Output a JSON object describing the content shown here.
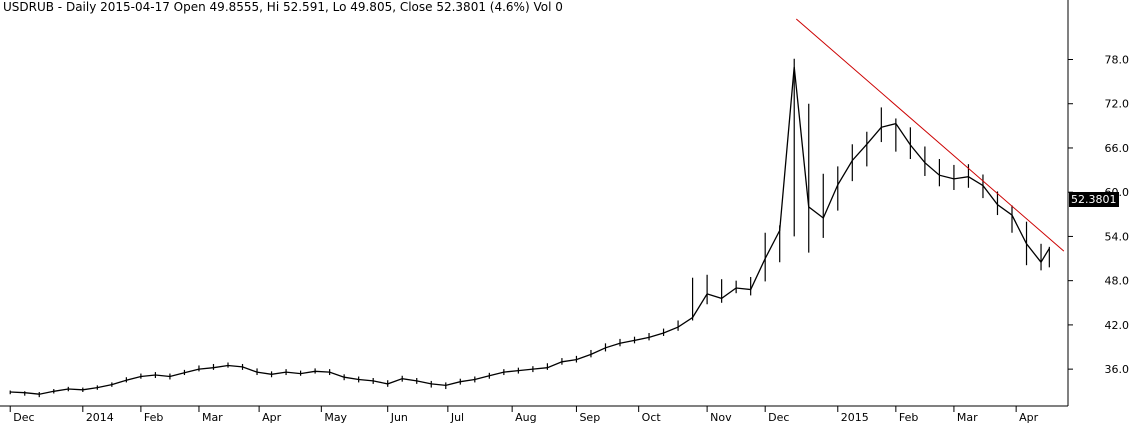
{
  "chart_data": {
    "type": "line",
    "symbol": "USDRUB",
    "title": "USDRUB - Daily 2015-04-17 Open 49.8555, Hi 52.591, Lo 49.805, Close 52.3801 (4.6%) Vol 0",
    "last_value_label": "52.3801",
    "y_ticks": [
      "36.0",
      "42.0",
      "48.0",
      "54.0",
      "60.0",
      "66.0",
      "72.0",
      "78.0"
    ],
    "ylim": [
      31,
      82
    ],
    "x_ticks": [
      "Dec",
      "2014",
      "Feb",
      "Mar",
      "Apr",
      "May",
      "Jun",
      "Jul",
      "Aug",
      "Sep",
      "Oct",
      "Nov",
      "Dec",
      "2015",
      "Feb",
      "Mar",
      "Apr"
    ],
    "x": [
      "2013-12-02",
      "2013-12-09",
      "2013-12-16",
      "2013-12-23",
      "2013-12-30",
      "2014-01-06",
      "2014-01-13",
      "2014-01-20",
      "2014-01-27",
      "2014-02-03",
      "2014-02-10",
      "2014-02-17",
      "2014-02-24",
      "2014-03-03",
      "2014-03-10",
      "2014-03-17",
      "2014-03-24",
      "2014-03-31",
      "2014-04-07",
      "2014-04-14",
      "2014-04-21",
      "2014-04-28",
      "2014-05-05",
      "2014-05-12",
      "2014-05-19",
      "2014-05-26",
      "2014-06-02",
      "2014-06-09",
      "2014-06-16",
      "2014-06-23",
      "2014-06-30",
      "2014-07-07",
      "2014-07-14",
      "2014-07-21",
      "2014-07-28",
      "2014-08-04",
      "2014-08-11",
      "2014-08-18",
      "2014-08-25",
      "2014-09-01",
      "2014-09-08",
      "2014-09-15",
      "2014-09-22",
      "2014-09-29",
      "2014-10-06",
      "2014-10-13",
      "2014-10-20",
      "2014-10-27",
      "2014-11-03",
      "2014-11-10",
      "2014-11-17",
      "2014-11-24",
      "2014-12-01",
      "2014-12-08",
      "2014-12-15",
      "2014-12-22",
      "2014-12-29",
      "2015-01-05",
      "2015-01-12",
      "2015-01-19",
      "2015-01-26",
      "2015-02-02",
      "2015-02-09",
      "2015-02-16",
      "2015-02-23",
      "2015-03-02",
      "2015-03-09",
      "2015-03-16",
      "2015-03-23",
      "2015-03-30",
      "2015-04-06",
      "2015-04-13",
      "2015-04-17"
    ],
    "series": [
      {
        "values": [
          32.9,
          32.8,
          32.6,
          33.0,
          33.3,
          33.2,
          33.5,
          33.9,
          34.5,
          35.0,
          35.2,
          35.0,
          35.5,
          36.0,
          36.2,
          36.5,
          36.3,
          35.6,
          35.3,
          35.6,
          35.4,
          35.7,
          35.6,
          34.9,
          34.6,
          34.4,
          34.0,
          34.7,
          34.4,
          34.0,
          33.8,
          34.3,
          34.6,
          35.1,
          35.6,
          35.8,
          36.0,
          36.2,
          37.0,
          37.3,
          38.0,
          38.9,
          39.5,
          39.9,
          40.3,
          40.9,
          41.7,
          43.0,
          46.2,
          45.6,
          47.0,
          46.8,
          51.0,
          54.8,
          77.0,
          58.0,
          56.5,
          61.0,
          64.3,
          66.5,
          68.8,
          69.3,
          66.4,
          64.0,
          62.3,
          61.8,
          62.1,
          60.9,
          58.3,
          56.9,
          53.0,
          50.5,
          52.38
        ],
        "highs": [
          33.1,
          33.0,
          32.9,
          33.3,
          33.6,
          33.5,
          33.8,
          34.2,
          34.9,
          35.4,
          35.6,
          35.4,
          35.9,
          36.5,
          36.7,
          36.9,
          36.7,
          36.1,
          35.7,
          36.0,
          35.8,
          36.1,
          36.0,
          35.3,
          35.0,
          34.8,
          34.5,
          35.1,
          34.8,
          34.4,
          34.2,
          34.7,
          35.0,
          35.5,
          36.0,
          36.2,
          36.4,
          36.8,
          37.5,
          37.8,
          38.6,
          39.5,
          40.1,
          40.4,
          40.9,
          41.5,
          42.6,
          48.4,
          48.8,
          48.2,
          48.0,
          48.5,
          54.5,
          55.5,
          78.1,
          72.0,
          62.5,
          63.5,
          66.5,
          68.2,
          71.5,
          70.0,
          68.8,
          66.2,
          64.5,
          63.7,
          63.8,
          62.4,
          60.1,
          58.2,
          56.0,
          53.0,
          52.59
        ],
        "lows": [
          32.6,
          32.4,
          32.2,
          32.7,
          33.0,
          32.9,
          33.2,
          33.6,
          34.2,
          34.7,
          34.8,
          34.6,
          35.2,
          35.7,
          35.9,
          36.2,
          35.9,
          35.2,
          34.9,
          35.2,
          35.1,
          35.4,
          35.2,
          34.5,
          34.2,
          34.0,
          33.6,
          34.3,
          34.0,
          33.5,
          33.3,
          33.9,
          34.2,
          34.7,
          35.2,
          35.4,
          35.6,
          35.9,
          36.6,
          36.9,
          37.6,
          38.4,
          39.1,
          39.5,
          39.9,
          40.5,
          41.2,
          42.6,
          44.8,
          45.0,
          46.3,
          46.0,
          47.9,
          50.5,
          54.0,
          51.8,
          53.8,
          57.5,
          61.5,
          63.5,
          66.8,
          65.5,
          64.5,
          62.2,
          60.8,
          60.3,
          60.6,
          59.2,
          56.9,
          54.5,
          50.1,
          49.4,
          49.81
        ]
      }
    ],
    "trendline": {
      "start": {
        "x": "2014-12-16",
        "y": 83.5
      },
      "end": {
        "x": "2015-04-24",
        "y": 52.0
      },
      "color": "#cc0000"
    },
    "colors": {
      "price": "#000000",
      "trendline": "#cc0000",
      "axis": "#000000",
      "background": "#ffffff"
    },
    "grid": false,
    "y_axis_position": "right"
  }
}
